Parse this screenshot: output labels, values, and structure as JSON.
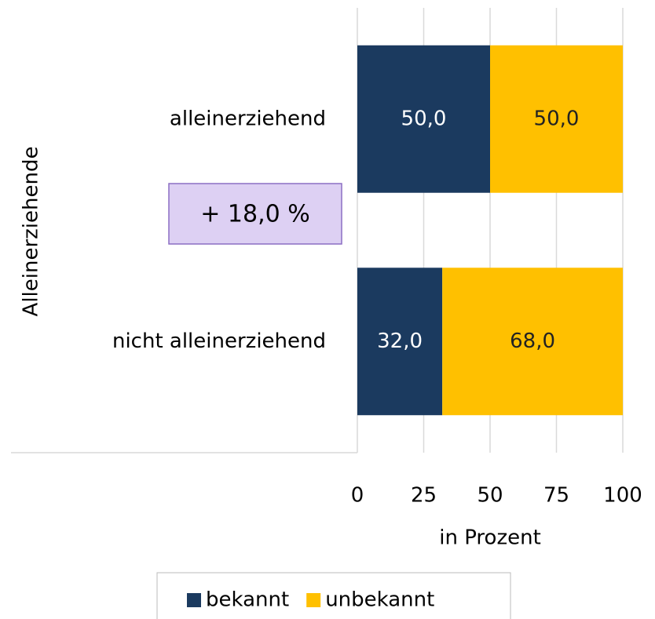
{
  "chart_data": {
    "type": "stacked_bar_horizontal",
    "y_axis_label": "Alleinerziehende",
    "x_axis_label": "in Prozent",
    "categories": [
      "alleinerziehend",
      "nicht alleinerziehend"
    ],
    "series": [
      {
        "name": "bekannt",
        "color": "#1b3a5f",
        "values": [
          50,
          32
        ],
        "value_labels": [
          "50,0",
          "32,0"
        ]
      },
      {
        "name": "unbekannt",
        "color": "#ffc000",
        "values": [
          50,
          68
        ],
        "value_labels": [
          "50,0",
          "68,0"
        ]
      }
    ],
    "xlim": [
      0,
      100
    ],
    "xticks": [
      0,
      25,
      50,
      75,
      100
    ],
    "grid": true,
    "legend": "bottom",
    "annotations": [
      "+ 18,0 %"
    ]
  }
}
